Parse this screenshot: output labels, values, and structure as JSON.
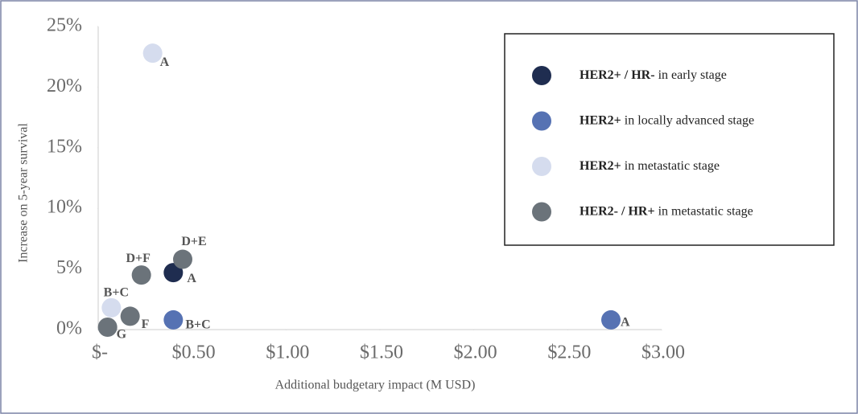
{
  "chart_data": {
    "type": "scatter",
    "xlabel": "Additional budgetary impact (M USD)",
    "ylabel": "Increase on 5-year survival",
    "xlim": [
      0,
      3
    ],
    "ylim": [
      0,
      25
    ],
    "xticks": [
      {
        "value": 0,
        "label": "$-"
      },
      {
        "value": 0.5,
        "label": "$0.50"
      },
      {
        "value": 1,
        "label": "$1.00"
      },
      {
        "value": 1.5,
        "label": "$1.50"
      },
      {
        "value": 2,
        "label": "$2.00"
      },
      {
        "value": 2.5,
        "label": "$2.50"
      },
      {
        "value": 3,
        "label": "$3.00"
      }
    ],
    "yticks": [
      {
        "value": 0,
        "label": "0%"
      },
      {
        "value": 5,
        "label": "5%"
      },
      {
        "value": 10,
        "label": "10%"
      },
      {
        "value": 15,
        "label": "15%"
      },
      {
        "value": 20,
        "label": "20%"
      },
      {
        "value": 25,
        "label": "25%"
      }
    ],
    "legend": "upper right",
    "series": [
      {
        "name": "HER2+ / HR- in early stage",
        "color": "#1f2d50",
        "x": [
          0.4
        ],
        "values": [
          4.7
        ],
        "labels": [
          "A"
        ]
      },
      {
        "name": "HER2+ in locally advanced stage",
        "color": "#5672b3",
        "x": [
          0.4,
          2.73
        ],
        "values": [
          0.8,
          0.8
        ],
        "labels": [
          "B+C",
          "A"
        ]
      },
      {
        "name": "HER2+ in metastatic stage",
        "color": "#d5dcee",
        "x": [
          0.29,
          0.07
        ],
        "values": [
          22.8,
          1.8
        ],
        "labels": [
          "A",
          "B+C"
        ]
      },
      {
        "name": "HER2- / HR+ in metastatic stage",
        "color": "#6b737a",
        "x": [
          0.45,
          0.23,
          0.17,
          0.05
        ],
        "values": [
          5.8,
          4.5,
          1.1,
          0.2
        ],
        "labels": [
          "D+E",
          "D+F",
          "F",
          "G"
        ]
      }
    ]
  }
}
